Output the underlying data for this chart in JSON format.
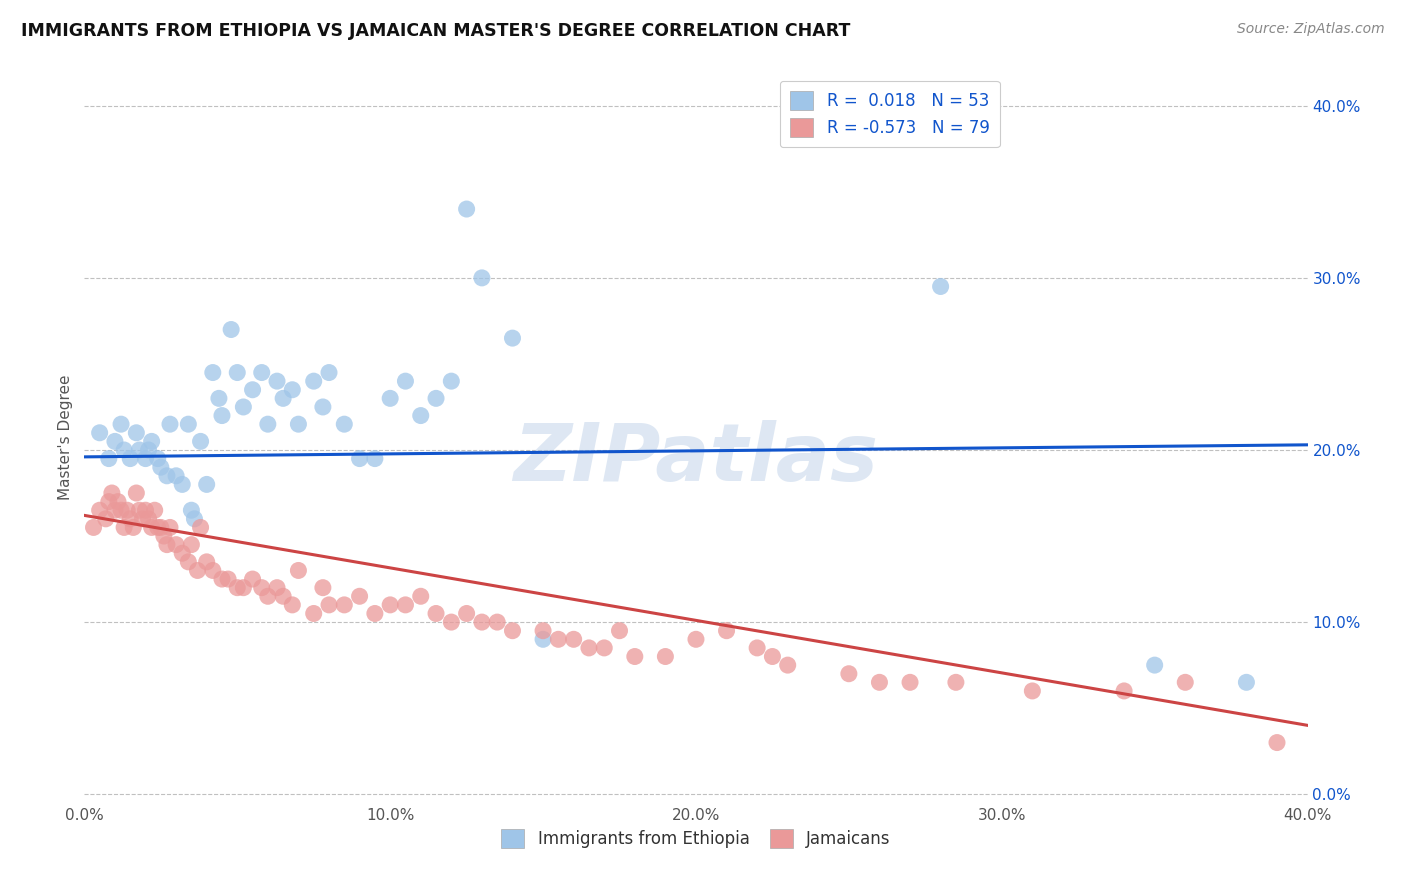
{
  "title": "IMMIGRANTS FROM ETHIOPIA VS JAMAICAN MASTER'S DEGREE CORRELATION CHART",
  "source": "Source: ZipAtlas.com",
  "ylabel": "Master's Degree",
  "xlim": [
    0.0,
    0.4
  ],
  "ylim": [
    -0.005,
    0.42
  ],
  "ytick_values": [
    0.0,
    0.1,
    0.2,
    0.3,
    0.4
  ],
  "xtick_values": [
    0.0,
    0.1,
    0.2,
    0.3,
    0.4
  ],
  "blue_color": "#9fc5e8",
  "pink_color": "#ea9999",
  "blue_line_color": "#1155cc",
  "pink_line_color": "#cc4444",
  "watermark": "ZIPatlas",
  "blue_scatter_x": [
    0.005,
    0.008,
    0.01,
    0.012,
    0.013,
    0.015,
    0.017,
    0.018,
    0.02,
    0.021,
    0.022,
    0.024,
    0.025,
    0.027,
    0.028,
    0.03,
    0.032,
    0.034,
    0.035,
    0.036,
    0.038,
    0.04,
    0.042,
    0.044,
    0.045,
    0.048,
    0.05,
    0.052,
    0.055,
    0.058,
    0.06,
    0.063,
    0.065,
    0.068,
    0.07,
    0.075,
    0.078,
    0.08,
    0.085,
    0.09,
    0.095,
    0.1,
    0.105,
    0.11,
    0.115,
    0.12,
    0.125,
    0.13,
    0.14,
    0.15,
    0.28,
    0.35,
    0.38
  ],
  "blue_scatter_y": [
    0.21,
    0.195,
    0.205,
    0.215,
    0.2,
    0.195,
    0.21,
    0.2,
    0.195,
    0.2,
    0.205,
    0.195,
    0.19,
    0.185,
    0.215,
    0.185,
    0.18,
    0.215,
    0.165,
    0.16,
    0.205,
    0.18,
    0.245,
    0.23,
    0.22,
    0.27,
    0.245,
    0.225,
    0.235,
    0.245,
    0.215,
    0.24,
    0.23,
    0.235,
    0.215,
    0.24,
    0.225,
    0.245,
    0.215,
    0.195,
    0.195,
    0.23,
    0.24,
    0.22,
    0.23,
    0.24,
    0.34,
    0.3,
    0.265,
    0.09,
    0.295,
    0.075,
    0.065
  ],
  "pink_scatter_x": [
    0.003,
    0.005,
    0.007,
    0.008,
    0.009,
    0.01,
    0.011,
    0.012,
    0.013,
    0.014,
    0.015,
    0.016,
    0.017,
    0.018,
    0.019,
    0.02,
    0.021,
    0.022,
    0.023,
    0.024,
    0.025,
    0.026,
    0.027,
    0.028,
    0.03,
    0.032,
    0.034,
    0.035,
    0.037,
    0.038,
    0.04,
    0.042,
    0.045,
    0.047,
    0.05,
    0.052,
    0.055,
    0.058,
    0.06,
    0.063,
    0.065,
    0.068,
    0.07,
    0.075,
    0.078,
    0.08,
    0.085,
    0.09,
    0.095,
    0.1,
    0.105,
    0.11,
    0.115,
    0.12,
    0.125,
    0.13,
    0.135,
    0.14,
    0.15,
    0.155,
    0.16,
    0.165,
    0.17,
    0.175,
    0.18,
    0.19,
    0.2,
    0.21,
    0.22,
    0.225,
    0.23,
    0.25,
    0.26,
    0.27,
    0.285,
    0.31,
    0.34,
    0.36,
    0.39
  ],
  "pink_scatter_y": [
    0.155,
    0.165,
    0.16,
    0.17,
    0.175,
    0.165,
    0.17,
    0.165,
    0.155,
    0.165,
    0.16,
    0.155,
    0.175,
    0.165,
    0.16,
    0.165,
    0.16,
    0.155,
    0.165,
    0.155,
    0.155,
    0.15,
    0.145,
    0.155,
    0.145,
    0.14,
    0.135,
    0.145,
    0.13,
    0.155,
    0.135,
    0.13,
    0.125,
    0.125,
    0.12,
    0.12,
    0.125,
    0.12,
    0.115,
    0.12,
    0.115,
    0.11,
    0.13,
    0.105,
    0.12,
    0.11,
    0.11,
    0.115,
    0.105,
    0.11,
    0.11,
    0.115,
    0.105,
    0.1,
    0.105,
    0.1,
    0.1,
    0.095,
    0.095,
    0.09,
    0.09,
    0.085,
    0.085,
    0.095,
    0.08,
    0.08,
    0.09,
    0.095,
    0.085,
    0.08,
    0.075,
    0.07,
    0.065,
    0.065,
    0.065,
    0.06,
    0.06,
    0.065,
    0.03
  ],
  "blue_line_x": [
    0.0,
    0.4
  ],
  "blue_line_y": [
    0.196,
    0.203
  ],
  "pink_line_x": [
    0.0,
    0.4
  ],
  "pink_line_y": [
    0.162,
    0.04
  ],
  "background_color": "#ffffff",
  "grid_color": "#c0c0c0"
}
